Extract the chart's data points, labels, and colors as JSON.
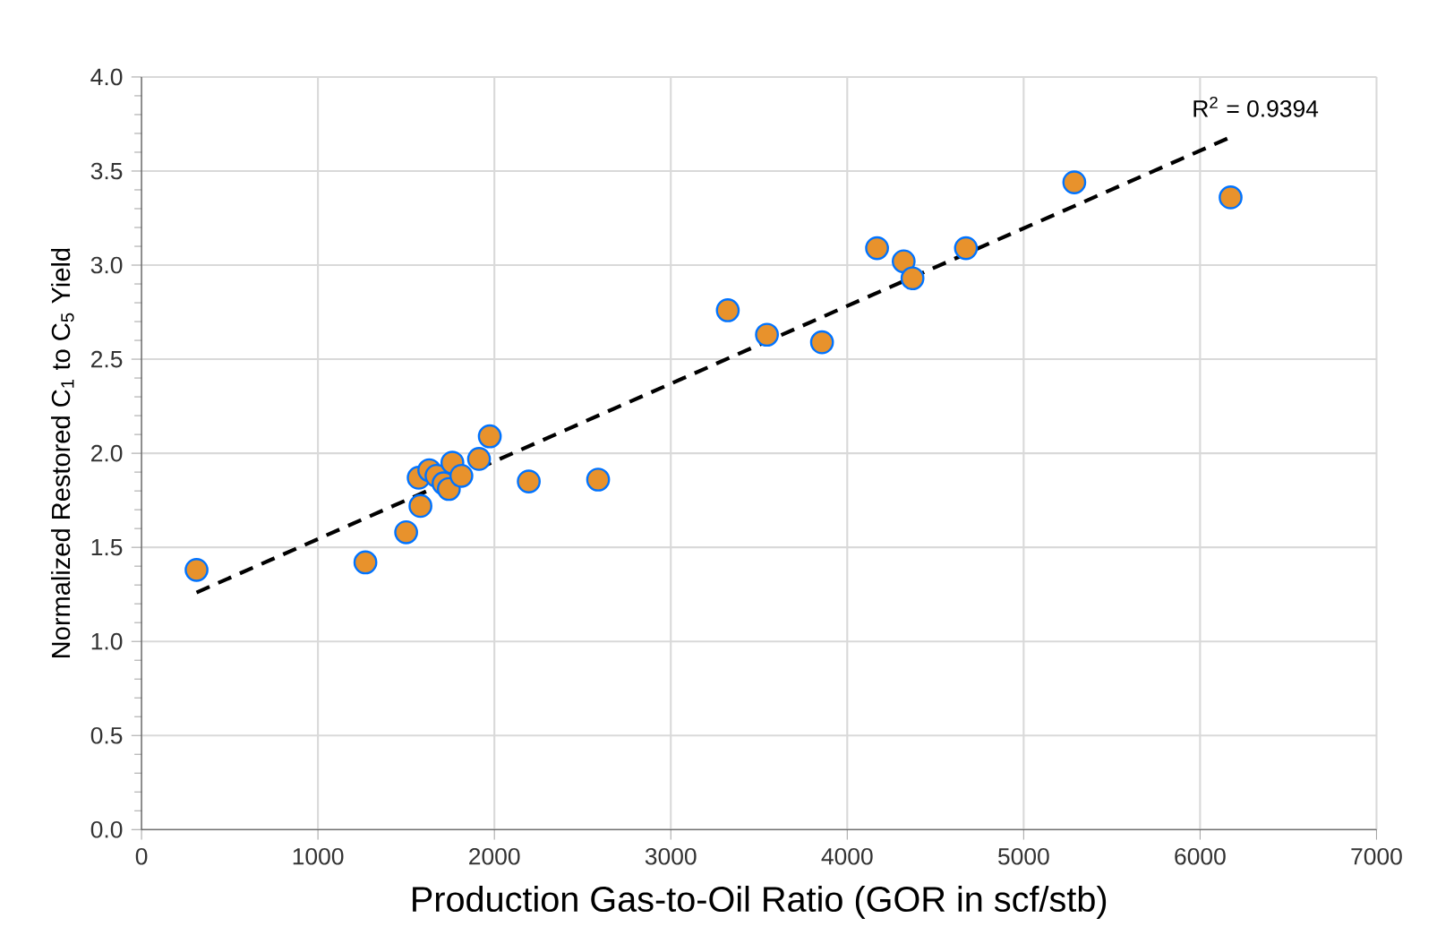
{
  "chart_data": {
    "type": "scatter",
    "xlabel": "Production Gas-to-Oil Ratio (GOR in scf/stb)",
    "ylabel": "Normalized Restored C$_{1}$ to C$_{5}$ Yield",
    "annotations": [
      "R$^{2}$ = 0.9394"
    ],
    "xlim": [
      0,
      7000
    ],
    "ylim": [
      0,
      4
    ],
    "xticks": [
      0,
      1000,
      2000,
      3000,
      4000,
      5000,
      6000,
      7000
    ],
    "yticks": [
      {
        "value": 0,
        "label": "0.0"
      },
      {
        "value": 0.5,
        "label": "0.5"
      },
      {
        "value": 1,
        "label": "1.0"
      },
      {
        "value": 1.5,
        "label": "1.5"
      },
      {
        "value": 2,
        "label": "2.0"
      },
      {
        "value": 2.5,
        "label": "2.5"
      },
      {
        "value": 3,
        "label": "3.0"
      },
      {
        "value": 3.5,
        "label": "3.5"
      },
      {
        "value": 4,
        "label": "4.0"
      }
    ],
    "grid": true,
    "series": [
      {
        "color": "#e8922c",
        "marker": "circle",
        "x": [
          312,
          1269,
          1500,
          1581,
          1571,
          1631,
          1672,
          1712,
          1742,
          1762,
          1813,
          1913,
          1974,
          2195,
          2588,
          3323,
          3545,
          3857,
          4169,
          4320,
          4370,
          4673,
          5287,
          6173
        ],
        "values": [
          1.38,
          1.42,
          1.58,
          1.72,
          1.87,
          1.91,
          1.88,
          1.84,
          1.81,
          1.95,
          1.88,
          1.97,
          2.09,
          1.85,
          1.86,
          2.76,
          2.63,
          2.59,
          3.09,
          3.02,
          2.93,
          3.09,
          3.44,
          3.36
        ]
      },
      {
        "type": "line",
        "color": "#000000",
        "line_style": "dashed",
        "marker": "none",
        "x": [
          312,
          6173
        ],
        "values": [
          1.26,
          3.68
        ]
      }
    ]
  }
}
